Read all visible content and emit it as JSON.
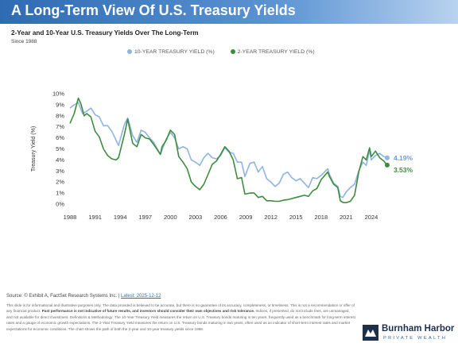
{
  "header": {
    "title": "A Long-Term View Of U.S. Treasury Yields",
    "subtitle": "2-Year and 10-Year U.S. Treasury Yields Over The Long-Term",
    "since": "Since 1988"
  },
  "legend": [
    {
      "label": "10-YEAR TREASURY YIELD (%)",
      "color": "#8fb3e3"
    },
    {
      "label": "2-YEAR TREASURY YIELD (%)",
      "color": "#3d8c3f"
    }
  ],
  "end_labels": {
    "ten_year": "4.19%",
    "two_year": "3.53%"
  },
  "footer": {
    "source_prefix": "Source: © Exhibit A, FactSet Research Systems Inc. |",
    "latest_link": "Latest: 2025-12-12",
    "disclaimer_1": "This slide is for informational and illustrative purposes only. The data provided is believed to be accurate, but there is no guarantee of its accuracy, completeness, or timeliness. This is not a recommendation or offer of any financial product.",
    "disclaimer_bold_1": "Past performance is not indicative of future results, and investors should consider their own objectives and risk tolerance.",
    "disclaimer_2": "Indices, if presented, do not include fees, are unmanaged, and not available for direct investment. Definitions & Methodology: The 10-Year Treasury Yield measures the return on U.S. Treasury bonds maturing in ten years, frequently used as a benchmark for long-term interest rates and a gauge of economic growth expectations. The 2-Year Treasury Yield measures the return on U.S. Treasury bonds maturing in two years, often used as an indicator of short-term interest rates and market expectations for economic conditions. The chart shows the path of both the 2-year and 10-year treasury yields since 1988."
  },
  "logo": {
    "name": "Burnham Harbor",
    "sub": "PRIVATE WEALTH"
  },
  "chart_data": {
    "type": "line",
    "ylabel": "Treasury Yield (%)",
    "xlabel": "",
    "xlim": [
      1988,
      2026
    ],
    "ylim": [
      0,
      10
    ],
    "xticks": [
      "1988",
      "1991",
      "1994",
      "1997",
      "2000",
      "2003",
      "2006",
      "2009",
      "2012",
      "2015",
      "2018",
      "2021",
      "2024"
    ],
    "yticks": [
      "0%",
      "1%",
      "2%",
      "3%",
      "4%",
      "5%",
      "6%",
      "7%",
      "8%",
      "9%",
      "10%"
    ],
    "grid": false,
    "legend_position": "top",
    "series": [
      {
        "name": "10-YEAR TREASURY YIELD (%)",
        "color": "#8fb3e3",
        "x": [
          1988,
          1988.5,
          1989,
          1989.5,
          1990,
          1990.5,
          1991,
          1991.5,
          1992,
          1992.5,
          1993,
          1993.5,
          1993.8,
          1994.5,
          1994.9,
          1995.5,
          1996,
          1996.5,
          1997,
          1997.5,
          1998,
          1998.8,
          1999,
          1999.5,
          2000,
          2000.5,
          2001,
          2001.5,
          2002,
          2002.5,
          2003,
          2003.5,
          2004,
          2004.5,
          2005,
          2005.5,
          2006,
          2006.5,
          2007,
          2007.5,
          2008,
          2008.5,
          2008.9,
          2009.5,
          2010,
          2010.5,
          2011,
          2011.5,
          2012,
          2012.5,
          2013,
          2013.5,
          2014,
          2014.5,
          2015,
          2015.5,
          2016,
          2016.5,
          2017,
          2017.5,
          2018,
          2018.8,
          2019,
          2019.5,
          2020,
          2020.3,
          2020.6,
          2021,
          2021.5,
          2022,
          2022.5,
          2023,
          2023.4,
          2023.8,
          2024,
          2024.5,
          2025,
          2025.5,
          2025.9
        ],
        "values": [
          8.7,
          9.0,
          9.2,
          8.2,
          8.4,
          8.7,
          8.1,
          7.9,
          7.1,
          7.1,
          6.6,
          5.8,
          5.3,
          7.2,
          7.8,
          6.2,
          5.6,
          6.7,
          6.5,
          6.0,
          5.6,
          4.5,
          4.9,
          5.9,
          6.5,
          6.0,
          5.0,
          5.2,
          5.0,
          4.0,
          3.8,
          3.5,
          4.2,
          4.6,
          4.2,
          4.1,
          4.4,
          5.1,
          4.7,
          4.6,
          3.8,
          3.8,
          2.5,
          3.7,
          3.8,
          2.9,
          3.4,
          2.3,
          2.0,
          1.6,
          1.9,
          2.7,
          2.9,
          2.4,
          2.1,
          2.3,
          1.9,
          1.5,
          2.4,
          2.3,
          2.6,
          3.2,
          2.7,
          1.9,
          1.6,
          0.7,
          0.6,
          1.1,
          1.5,
          1.8,
          3.0,
          3.8,
          3.5,
          4.9,
          4.0,
          4.4,
          4.6,
          4.3,
          4.19
        ]
      },
      {
        "name": "2-YEAR TREASURY YIELD (%)",
        "color": "#3d8c3f",
        "x": [
          1988,
          1988.5,
          1989,
          1989.3,
          1989.7,
          1990,
          1990.5,
          1991,
          1991.5,
          1992,
          1992.5,
          1993,
          1993.5,
          1993.8,
          1994.5,
          1994.9,
          1995.5,
          1996,
          1996.5,
          1997,
          1997.5,
          1998,
          1998.8,
          1999,
          1999.5,
          2000,
          2000.5,
          2001,
          2001.5,
          2002,
          2002.5,
          2003,
          2003.5,
          2004,
          2004.5,
          2005,
          2005.5,
          2006,
          2006.5,
          2007,
          2007.5,
          2008,
          2008.5,
          2008.9,
          2009.5,
          2010,
          2010.5,
          2011,
          2011.5,
          2012,
          2012.5,
          2013,
          2013.5,
          2014,
          2014.5,
          2015,
          2015.5,
          2016,
          2016.5,
          2017,
          2017.5,
          2018,
          2018.8,
          2019,
          2019.5,
          2020,
          2020.3,
          2020.6,
          2021,
          2021.5,
          2022,
          2022.5,
          2023,
          2023.4,
          2023.8,
          2024,
          2024.5,
          2025,
          2025.5,
          2025.9
        ],
        "values": [
          7.3,
          8.2,
          9.6,
          9.1,
          8.0,
          8.2,
          7.9,
          6.6,
          6.1,
          5.0,
          4.4,
          4.1,
          4.0,
          4.2,
          6.3,
          7.7,
          5.5,
          5.2,
          6.3,
          6.0,
          5.9,
          5.4,
          4.5,
          5.2,
          5.8,
          6.7,
          6.3,
          4.3,
          3.8,
          3.2,
          2.0,
          1.6,
          1.3,
          1.8,
          2.7,
          3.6,
          3.9,
          4.5,
          5.2,
          4.8,
          4.0,
          2.3,
          2.4,
          0.9,
          1.0,
          1.0,
          0.6,
          0.7,
          0.3,
          0.3,
          0.25,
          0.25,
          0.35,
          0.4,
          0.5,
          0.6,
          0.7,
          0.8,
          0.7,
          1.2,
          1.4,
          2.2,
          2.9,
          2.5,
          1.8,
          1.5,
          0.3,
          0.15,
          0.12,
          0.25,
          0.8,
          2.9,
          4.3,
          4.0,
          5.1,
          4.3,
          4.8,
          4.2,
          3.9,
          3.53
        ]
      }
    ]
  }
}
